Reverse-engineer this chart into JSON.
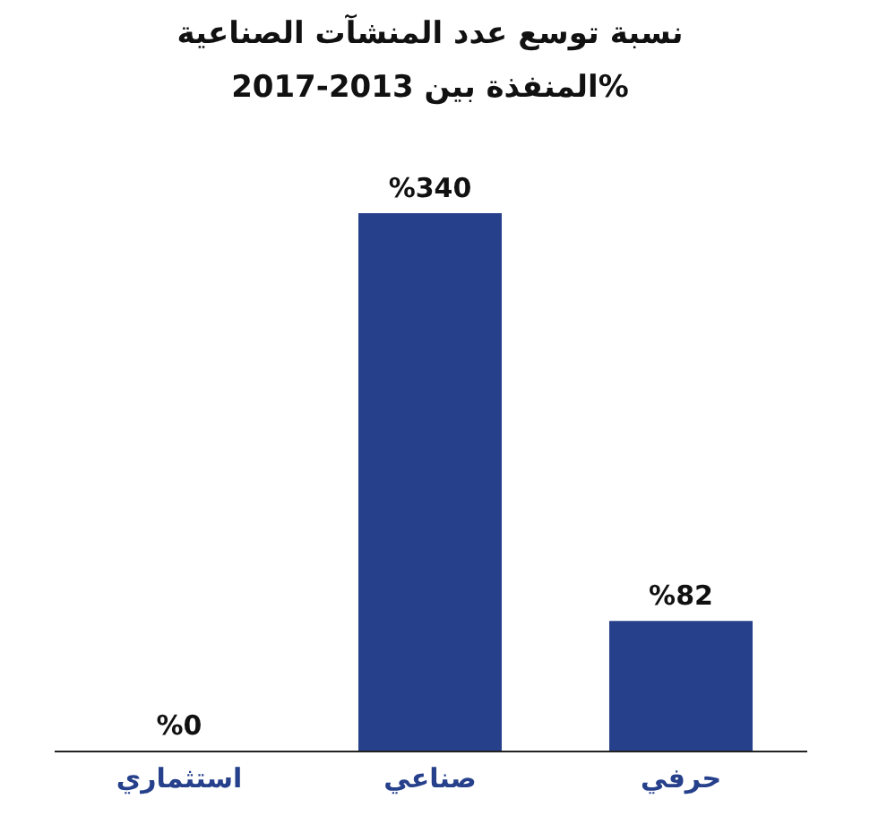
{
  "chart_data": {
    "type": "bar",
    "title": "نسبة توسع عدد المنشآت الصناعية\nالمنفذة بين 2013-2017%",
    "categories": [
      "استثماري",
      "صناعي",
      "حرفي"
    ],
    "values": [
      0,
      340,
      82
    ],
    "value_labels": [
      "%0",
      "%340",
      "%82"
    ],
    "color": "#26408b"
  }
}
